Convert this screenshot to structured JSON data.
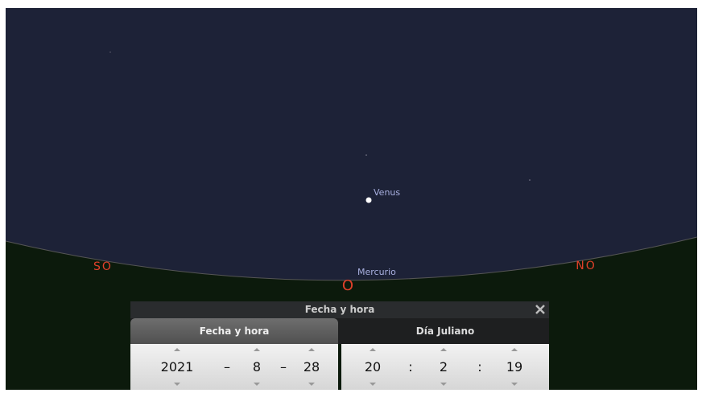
{
  "sky": {
    "compass": {
      "southwest": "SO",
      "west": "O",
      "northwest": "NO"
    },
    "objects": [
      {
        "label": "Venus"
      },
      {
        "label": "Mercurio"
      }
    ]
  },
  "dialog": {
    "title": "Fecha y hora",
    "tabs": [
      "Fecha y hora",
      "Día Juliano"
    ],
    "date": {
      "year": 2021,
      "month": 8,
      "day": 28,
      "separator": "–"
    },
    "time": {
      "hour": 20,
      "minute": 2,
      "second": 19,
      "separator": ":"
    }
  }
}
